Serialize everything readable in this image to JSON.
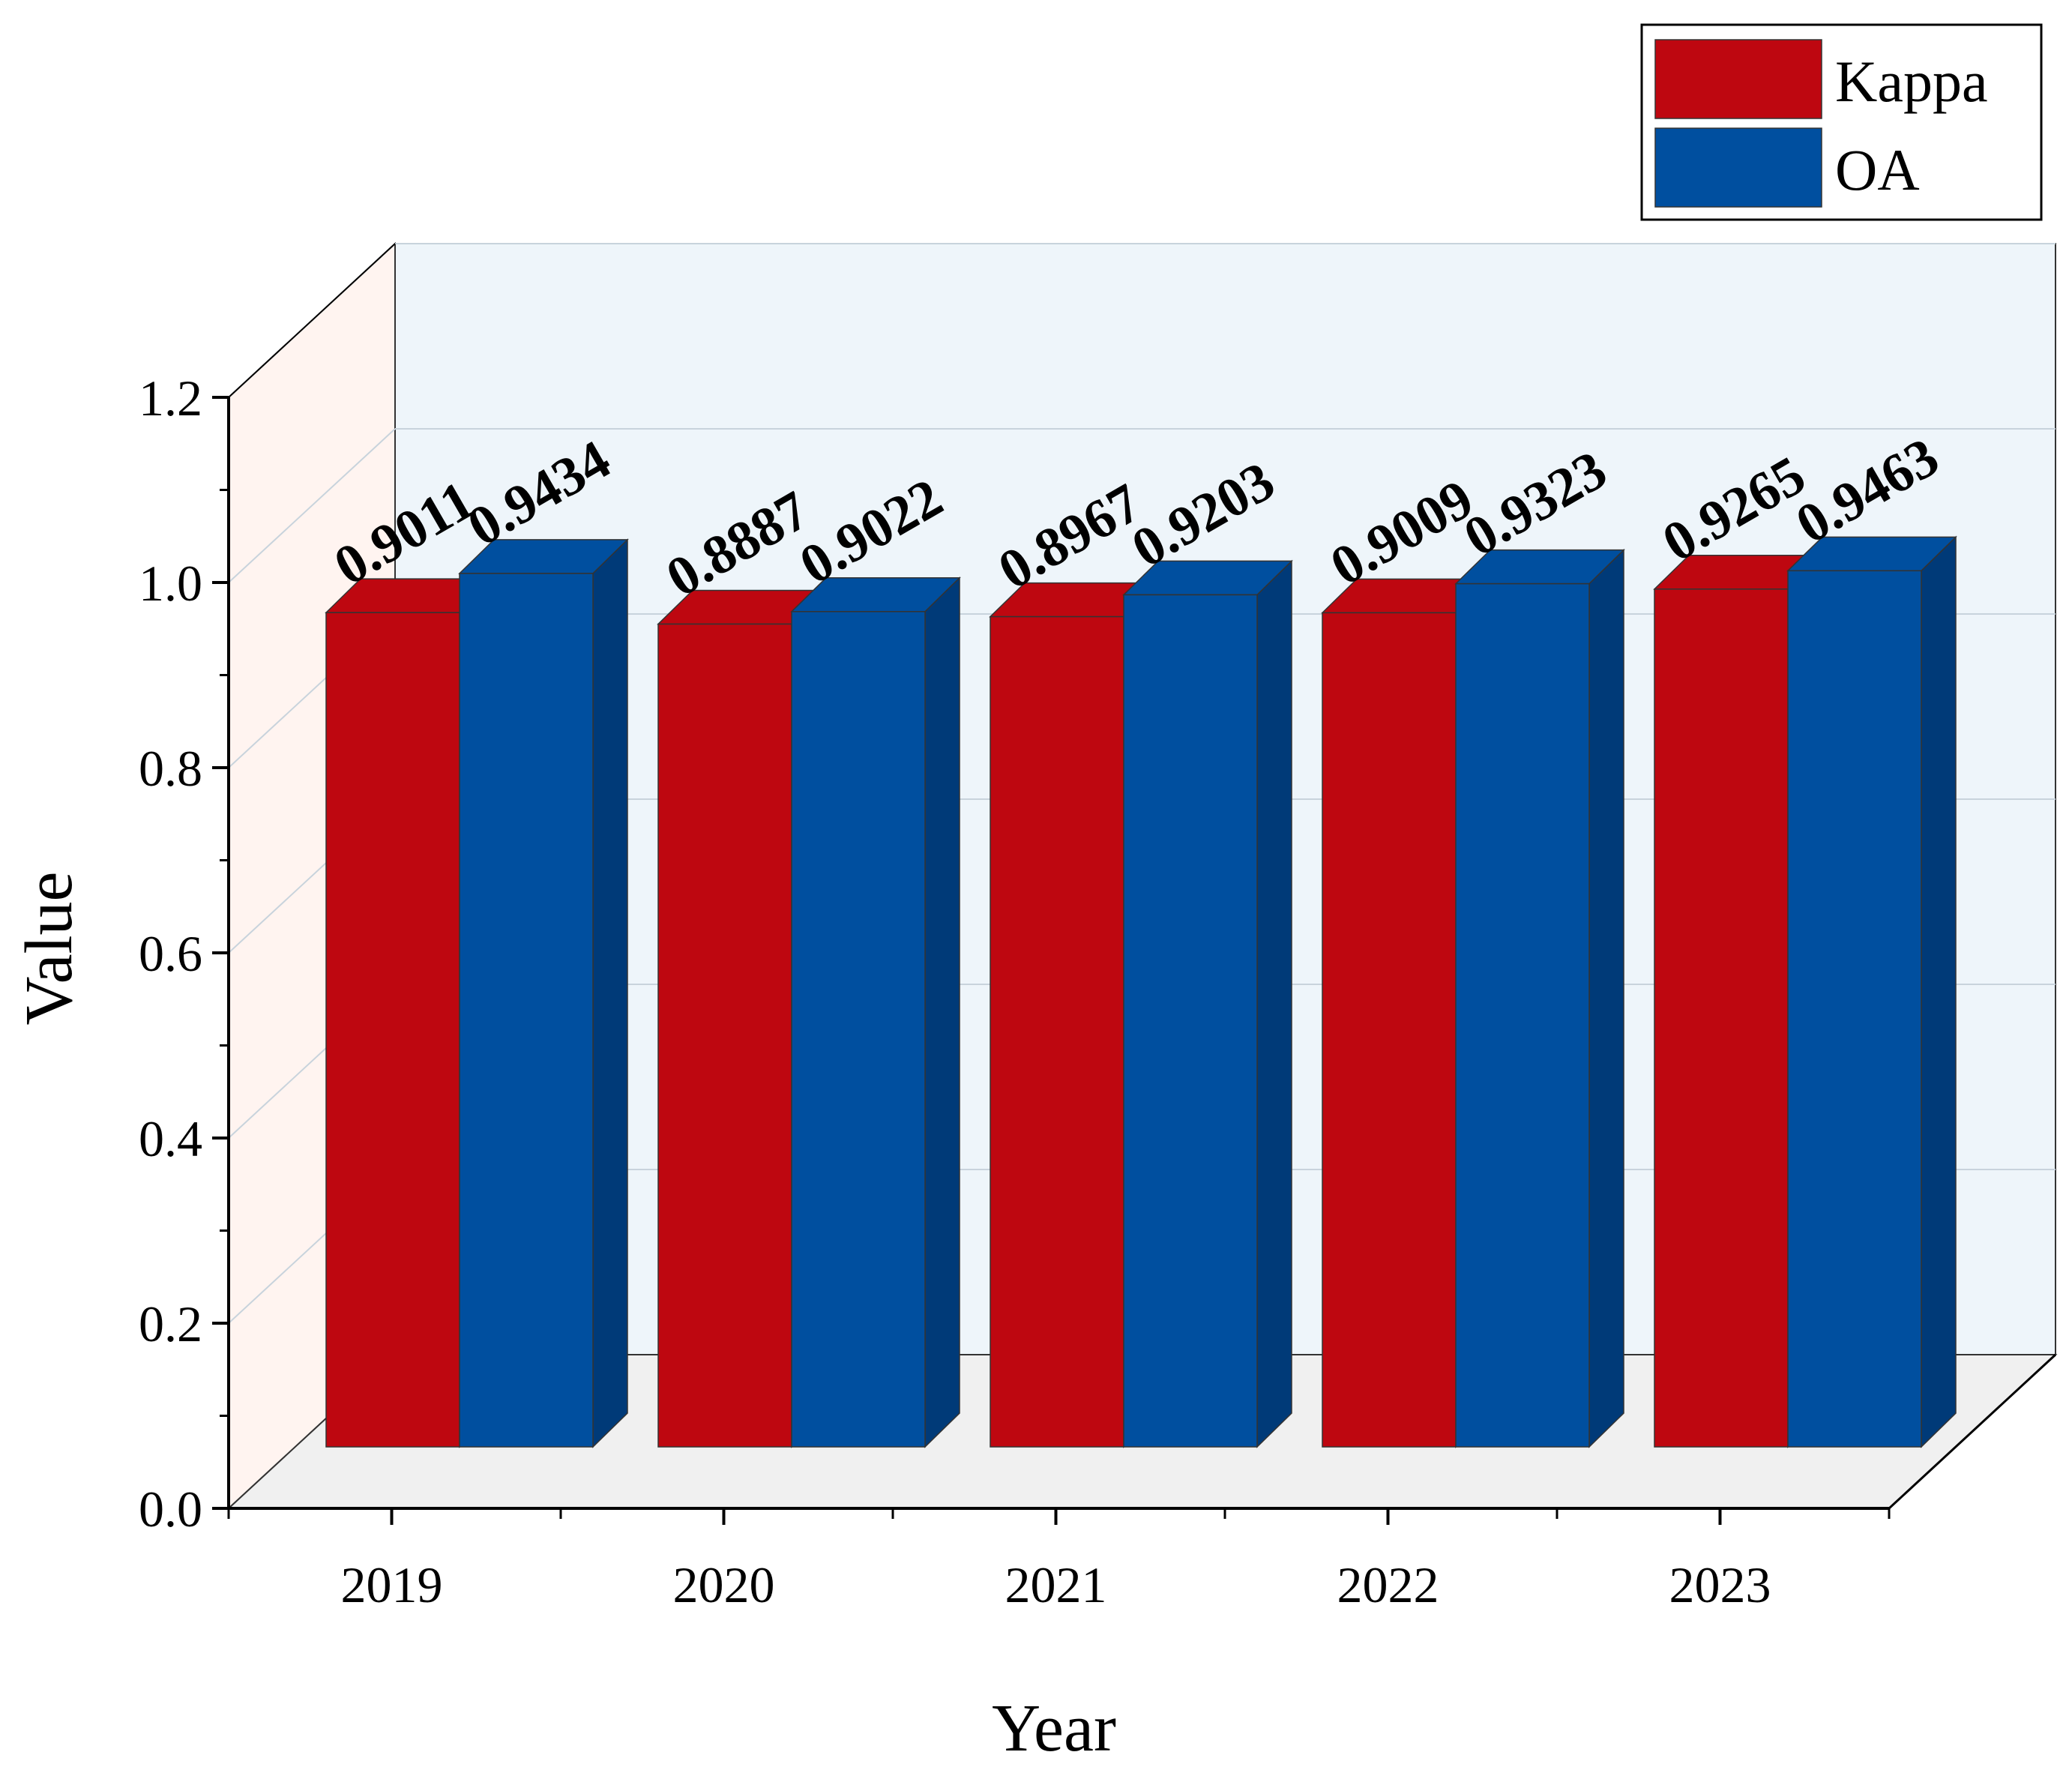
{
  "chart_data": {
    "type": "bar",
    "title": "",
    "xlabel": "Year",
    "ylabel": "Value",
    "categories": [
      "2019",
      "2020",
      "2021",
      "2022",
      "2023"
    ],
    "ylim": [
      0.0,
      1.2
    ],
    "yticks": [
      0.0,
      0.2,
      0.4,
      0.6,
      0.8,
      1.0,
      1.2
    ],
    "ytick_labels": [
      "0.0",
      "0.2",
      "0.4",
      "0.6",
      "0.8",
      "1.0",
      "1.2"
    ],
    "grid": true,
    "style": "3d",
    "legend_position": "top-right",
    "series": [
      {
        "name": "Kappa",
        "color": "#BE0710",
        "side_color": "#8A0207",
        "values": [
          0.9011,
          0.8887,
          0.8967,
          0.9009,
          0.9265
        ],
        "labels": [
          "0.9011",
          "0.8887",
          "0.8967",
          "0.9009",
          "0.9265"
        ]
      },
      {
        "name": "OA",
        "color": "#004F9F",
        "side_color": "#003A78",
        "values": [
          0.9434,
          0.9022,
          0.9203,
          0.9323,
          0.9463
        ],
        "labels": [
          "0.9434",
          "0.9022",
          "0.9203",
          "0.9323",
          "0.9463"
        ]
      }
    ],
    "colors": {
      "back_wall": "#EEF5FA",
      "side_wall": "#FFF4F0",
      "floor": "#F0F0F0",
      "grid": "#C8D3DC",
      "axis": "#000000"
    }
  }
}
